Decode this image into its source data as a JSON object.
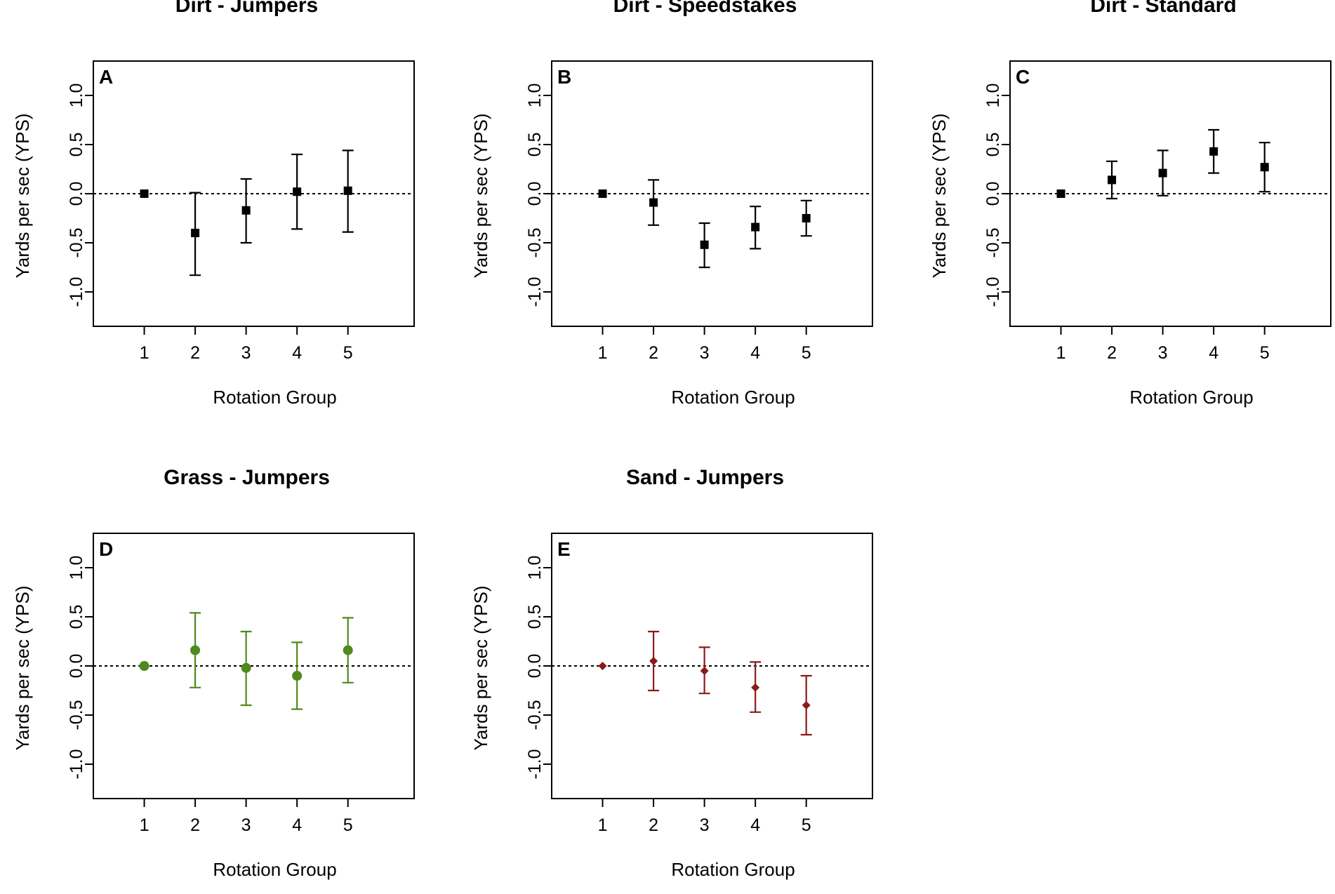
{
  "chart_data": [
    {
      "type": "scatter",
      "panel": "A",
      "title": "Dirt - Jumpers",
      "xlabel": "Rotation Group",
      "ylabel": "Yards per sec (YPS)",
      "x": [
        1,
        2,
        3,
        4,
        5
      ],
      "x_tick_labels": [
        "1",
        "2",
        "3",
        "4",
        "5"
      ],
      "y_tick_labels": [
        "1.0",
        "0.5",
        "0.0",
        "-0.5",
        "-1.0"
      ],
      "y_ticks": [
        1.0,
        0.5,
        0.0,
        -0.5,
        -1.0
      ],
      "xlim": [
        0.0,
        6.3
      ],
      "ylim": [
        -1.35,
        1.35
      ],
      "marker": "square",
      "color": "#000000",
      "reference_line": 0,
      "values": [
        0.0,
        -0.4,
        -0.17,
        0.02,
        0.03
      ],
      "lower": [
        null,
        -0.83,
        -0.5,
        -0.36,
        -0.39
      ],
      "upper": [
        null,
        0.01,
        0.15,
        0.4,
        0.44
      ]
    },
    {
      "type": "scatter",
      "panel": "B",
      "title": "Dirt - Speedstakes",
      "xlabel": "Rotation Group",
      "ylabel": "Yards per sec (YPS)",
      "x": [
        1,
        2,
        3,
        4,
        5
      ],
      "x_tick_labels": [
        "1",
        "2",
        "3",
        "4",
        "5"
      ],
      "y_tick_labels": [
        "1.0",
        "0.5",
        "0.0",
        "-0.5",
        "-1.0"
      ],
      "y_ticks": [
        1.0,
        0.5,
        0.0,
        -0.5,
        -1.0
      ],
      "xlim": [
        0.0,
        6.3
      ],
      "ylim": [
        -1.35,
        1.35
      ],
      "marker": "square",
      "color": "#000000",
      "reference_line": 0,
      "values": [
        0.0,
        -0.09,
        -0.52,
        -0.34,
        -0.25
      ],
      "lower": [
        null,
        -0.32,
        -0.75,
        -0.56,
        -0.43
      ],
      "upper": [
        null,
        0.14,
        -0.3,
        -0.13,
        -0.07
      ]
    },
    {
      "type": "scatter",
      "panel": "C",
      "title": "Dirt - Standard",
      "xlabel": "Rotation Group",
      "ylabel": "Yards per sec (YPS)",
      "x": [
        1,
        2,
        3,
        4,
        5
      ],
      "x_tick_labels": [
        "1",
        "2",
        "3",
        "4",
        "5"
      ],
      "y_tick_labels": [
        "1.0",
        "0.5",
        "0.0",
        "-0.5",
        "-1.0"
      ],
      "y_ticks": [
        1.0,
        0.5,
        0.0,
        -0.5,
        -1.0
      ],
      "xlim": [
        0.0,
        6.3
      ],
      "ylim": [
        -1.35,
        1.35
      ],
      "marker": "square",
      "color": "#000000",
      "reference_line": 0,
      "values": [
        0.0,
        0.14,
        0.21,
        0.43,
        0.27
      ],
      "lower": [
        null,
        -0.05,
        -0.02,
        0.21,
        0.02
      ],
      "upper": [
        null,
        0.33,
        0.44,
        0.65,
        0.52
      ]
    },
    {
      "type": "scatter",
      "panel": "D",
      "title": "Grass - Jumpers",
      "xlabel": "Rotation Group",
      "ylabel": "Yards per sec (YPS)",
      "x": [
        1,
        2,
        3,
        4,
        5
      ],
      "x_tick_labels": [
        "1",
        "2",
        "3",
        "4",
        "5"
      ],
      "y_tick_labels": [
        "1.0",
        "0.5",
        "0.0",
        "-0.5",
        "-1.0"
      ],
      "y_ticks": [
        1.0,
        0.5,
        0.0,
        -0.5,
        -1.0
      ],
      "xlim": [
        0.0,
        6.3
      ],
      "ylim": [
        -1.35,
        1.35
      ],
      "marker": "circle",
      "color": "#4e8a1e",
      "reference_line": 0,
      "values": [
        0.0,
        0.16,
        -0.02,
        -0.1,
        0.16
      ],
      "lower": [
        null,
        -0.22,
        -0.4,
        -0.44,
        -0.17
      ],
      "upper": [
        null,
        0.54,
        0.35,
        0.24,
        0.49
      ]
    },
    {
      "type": "scatter",
      "panel": "E",
      "title": "Sand - Jumpers",
      "xlabel": "Rotation Group",
      "ylabel": "Yards per sec (YPS)",
      "x": [
        1,
        2,
        3,
        4,
        5
      ],
      "x_tick_labels": [
        "1",
        "2",
        "3",
        "4",
        "5"
      ],
      "y_tick_labels": [
        "1.0",
        "0.5",
        "0.0",
        "-0.5",
        "-1.0"
      ],
      "y_ticks": [
        1.0,
        0.5,
        0.0,
        -0.5,
        -1.0
      ],
      "xlim": [
        0.0,
        6.3
      ],
      "ylim": [
        -1.35,
        1.35
      ],
      "marker": "diamond",
      "color": "#8b1a1a",
      "reference_line": 0,
      "values": [
        0.0,
        0.05,
        -0.05,
        -0.22,
        -0.4
      ],
      "lower": [
        null,
        -0.25,
        -0.28,
        -0.47,
        -0.7
      ],
      "upper": [
        null,
        0.35,
        0.19,
        0.04,
        -0.1
      ]
    }
  ]
}
